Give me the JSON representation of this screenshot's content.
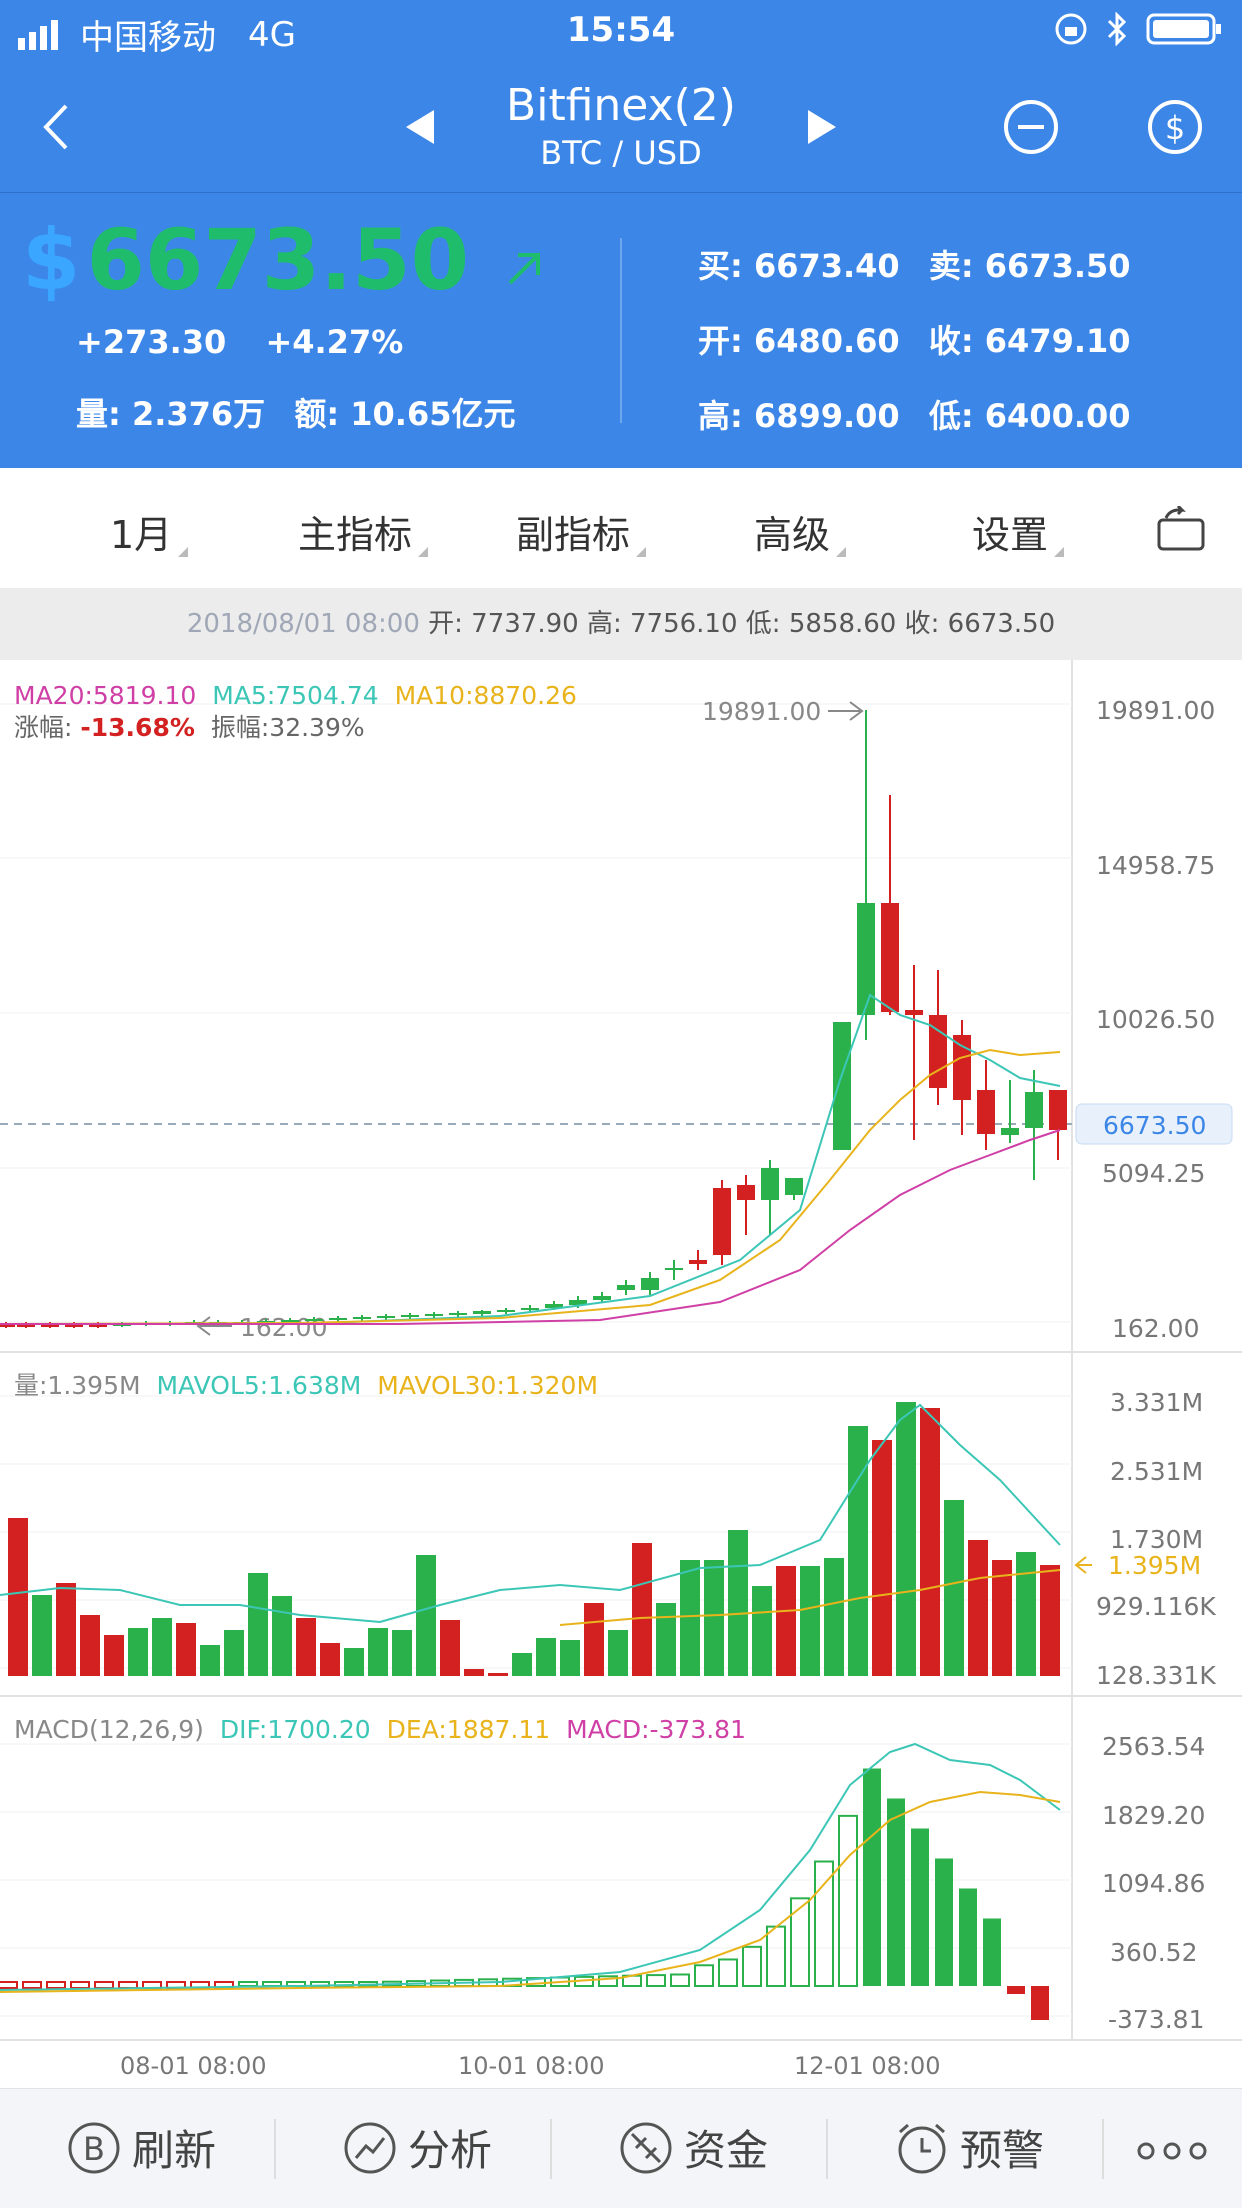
{
  "status_bar": {
    "carrier": "中国移动",
    "network": "4G",
    "time": "15:54"
  },
  "nav": {
    "title": "Bitfinex(2)",
    "pair": "BTC / USD"
  },
  "ticker": {
    "currency_symbol": "$",
    "price": "6673.50",
    "change": "+273.30",
    "change_pct": "+4.27%",
    "volume": "量: 2.376万",
    "amount": "额: 10.65亿元",
    "buy": "买: 6673.40",
    "sell": "卖: 6673.50",
    "open": "开: 6480.60",
    "close": "收: 6479.10",
    "high": "高: 6899.00",
    "low": "低: 6400.00"
  },
  "toolbar": {
    "period": "1月",
    "main_indicator": "主指标",
    "sub_indicator": "副指标",
    "advanced": "高级",
    "settings": "设置"
  },
  "info_bar": {
    "date": "2018/08/01 08:00",
    "open_label": "开:",
    "open": "7737.90",
    "high_label": "高:",
    "high": "7756.10",
    "low_label": "低:",
    "low": "5858.60",
    "close_label": "收:",
    "close": "6673.50"
  },
  "price_panel": {
    "ma20": "MA20:5819.10",
    "ma5": "MA5:7504.74",
    "ma10": "MA10:8870.26",
    "change_label": "涨幅:",
    "change": "-13.68%",
    "amplitude": "振幅:32.39%",
    "axis": [
      "19891.00",
      "14958.75",
      "10026.50",
      "5094.25",
      "162.00"
    ],
    "current": "6673.50",
    "max_marker": "19891.00",
    "min_marker": "162.00"
  },
  "volume_panel": {
    "vol": "量:1.395M",
    "mavol5": "MAVOL5:1.638M",
    "mavol30": "MAVOL30:1.320M",
    "axis": [
      "3.331M",
      "2.531M",
      "1.730M",
      "929.116K",
      "128.331K"
    ],
    "current": "1.395M"
  },
  "macd_panel": {
    "label": "MACD(12,26,9)",
    "dif": "DIF:1700.20",
    "dea": "DEA:1887.11",
    "macd": "MACD:-373.81",
    "axis": [
      "2563.54",
      "1829.20",
      "1094.86",
      "360.52",
      "-373.81"
    ]
  },
  "x_axis": [
    "08-01 08:00",
    "10-01 08:00",
    "12-01 08:00"
  ],
  "bottom_tabs": [
    "刷新",
    "分析",
    "资金",
    "预警"
  ],
  "colors": {
    "up": "#2ab14c",
    "down": "#d32121",
    "header": "#3c86e8",
    "ma5": "#3cc6b6",
    "ma10": "#e8b31b",
    "ma20": "#cf3fa5"
  },
  "chart_data": {
    "type": "candlestick",
    "series": [
      {
        "name": "MA20",
        "value": 5819.1
      },
      {
        "name": "MA5",
        "value": 7504.74
      },
      {
        "name": "MA10",
        "value": 8870.26
      }
    ],
    "ylim": [
      162.0,
      19891.0
    ]
  }
}
